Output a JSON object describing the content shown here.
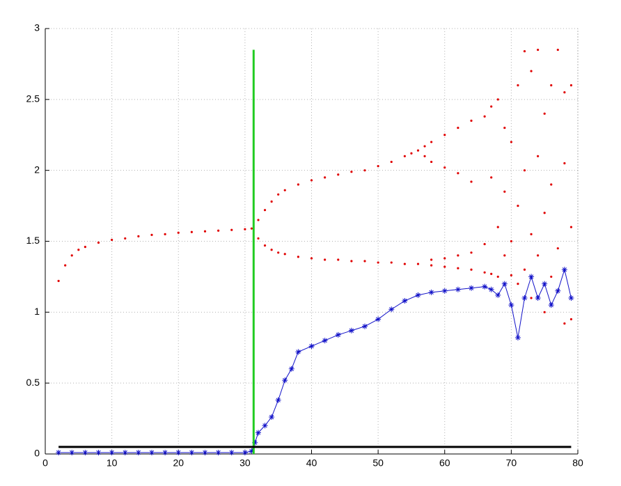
{
  "chart_data": {
    "type": "scatter",
    "xlim": [
      0,
      80
    ],
    "ylim": [
      0,
      3
    ],
    "xticks": [
      0,
      10,
      20,
      30,
      40,
      50,
      60,
      70,
      80
    ],
    "yticks": [
      0,
      0.5,
      1,
      1.5,
      2,
      2.5,
      3
    ],
    "grid": true,
    "series": [
      {
        "color": "#e00000",
        "style": "dots",
        "x": [
          2,
          3,
          4,
          5,
          6,
          8,
          10,
          12,
          14,
          16,
          18,
          20,
          22,
          24,
          26,
          28,
          30,
          31,
          32,
          33,
          34,
          35,
          36,
          38,
          40,
          42,
          44,
          46,
          48,
          50,
          52,
          54,
          55,
          56,
          57,
          58,
          60,
          62,
          64,
          57,
          58,
          60,
          62,
          64,
          32,
          33,
          34,
          35,
          36,
          38,
          40,
          42,
          44,
          46,
          48,
          50,
          52,
          54,
          56,
          58,
          60,
          62,
          64,
          58,
          60,
          62,
          64,
          66,
          66,
          66,
          67,
          67,
          67,
          68,
          68,
          68,
          69,
          69,
          69,
          70,
          70,
          70,
          71,
          71,
          71,
          72,
          72,
          72,
          73,
          73,
          73,
          74,
          74,
          74,
          75,
          75,
          75,
          76,
          76,
          76,
          77,
          77,
          77,
          78,
          78,
          78,
          79,
          79,
          79
        ],
        "values": [
          1.22,
          1.33,
          1.4,
          1.44,
          1.46,
          1.49,
          1.51,
          1.52,
          1.535,
          1.545,
          1.55,
          1.56,
          1.565,
          1.57,
          1.575,
          1.58,
          1.585,
          1.59,
          1.65,
          1.72,
          1.78,
          1.83,
          1.86,
          1.9,
          1.93,
          1.95,
          1.97,
          1.99,
          2.0,
          2.03,
          2.06,
          2.1,
          2.12,
          2.14,
          2.17,
          2.2,
          2.25,
          2.3,
          2.35,
          2.1,
          2.06,
          2.02,
          1.98,
          1.92,
          1.52,
          1.47,
          1.44,
          1.42,
          1.41,
          1.39,
          1.38,
          1.37,
          1.37,
          1.36,
          1.36,
          1.35,
          1.35,
          1.34,
          1.34,
          1.33,
          1.32,
          1.31,
          1.3,
          1.37,
          1.38,
          1.4,
          1.42,
          2.38,
          1.48,
          1.28,
          2.45,
          1.95,
          1.27,
          2.5,
          1.6,
          1.25,
          2.3,
          1.85,
          1.4,
          2.2,
          1.5,
          1.26,
          2.6,
          1.75,
          1.2,
          2.84,
          2.0,
          1.3,
          2.7,
          1.55,
          1.1,
          2.85,
          2.1,
          1.4,
          2.4,
          1.7,
          1.0,
          2.6,
          1.9,
          1.25,
          2.85,
          1.45,
          1.15,
          2.55,
          2.05,
          0.92,
          2.6,
          1.6,
          0.95
        ]
      },
      {
        "color": "#1010c8",
        "style": "line-stars",
        "x": [
          2,
          4,
          6,
          8,
          10,
          12,
          14,
          16,
          18,
          20,
          22,
          24,
          26,
          28,
          30,
          31,
          31.5,
          32,
          33,
          34,
          35,
          36,
          37,
          38,
          40,
          42,
          44,
          46,
          48,
          50,
          52,
          54,
          56,
          58,
          60,
          62,
          64,
          66,
          67,
          68,
          69,
          70,
          71,
          72,
          73,
          74,
          75,
          76,
          77,
          78,
          79
        ],
        "values": [
          0.01,
          0.01,
          0.01,
          0.01,
          0.01,
          0.01,
          0.01,
          0.01,
          0.01,
          0.01,
          0.01,
          0.01,
          0.01,
          0.01,
          0.01,
          0.02,
          0.08,
          0.15,
          0.2,
          0.26,
          0.38,
          0.52,
          0.6,
          0.72,
          0.76,
          0.8,
          0.84,
          0.87,
          0.9,
          0.95,
          1.02,
          1.08,
          1.12,
          1.14,
          1.15,
          1.16,
          1.17,
          1.18,
          1.16,
          1.12,
          1.2,
          1.05,
          0.82,
          1.1,
          1.25,
          1.1,
          1.2,
          1.05,
          1.15,
          1.3,
          1.1
        ]
      },
      {
        "color": "#22cc22",
        "style": "line",
        "x": [
          31.3,
          31.3
        ],
        "values": [
          0,
          2.85
        ]
      },
      {
        "color": "#000000",
        "style": "line",
        "x": [
          2,
          79
        ],
        "values": [
          0.05,
          0.05
        ]
      }
    ]
  }
}
